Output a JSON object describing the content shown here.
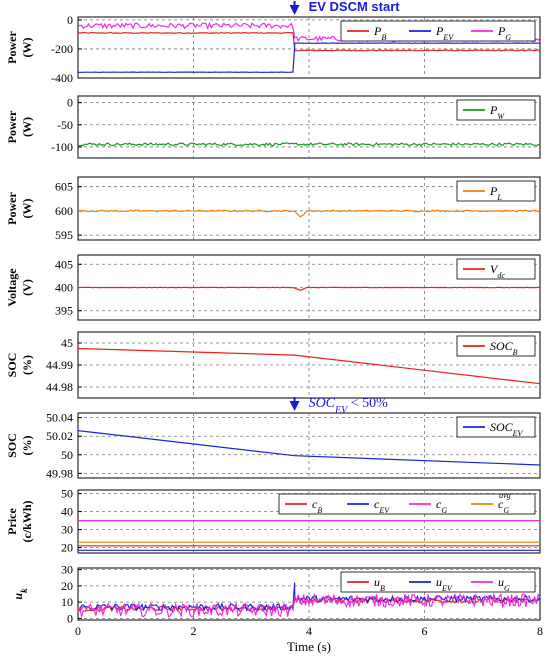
{
  "chart_data": {
    "type": "line",
    "x_axis": {
      "label": "Time (s)",
      "range": [
        0,
        8
      ],
      "ticks": [
        "0",
        "2",
        "4",
        "6",
        "8"
      ]
    },
    "event_time": 3.75,
    "annotations": [
      {
        "text": "EV DSCM start",
        "x": 3.75,
        "panel": 0
      },
      {
        "text": "SOC",
        "sub": "EV",
        "suffix": " < 50%",
        "x": 3.75,
        "panel": 5
      }
    ],
    "panels": [
      {
        "ylabel": [
          "Power",
          "(W)"
        ],
        "ylim": [
          -400,
          20
        ],
        "yticks": [
          0,
          -200,
          -400
        ],
        "series": [
          {
            "name": "P",
            "sub": "B",
            "color": "#e8221c",
            "before": -90,
            "after": -210,
            "noise": 3
          },
          {
            "name": "P",
            "sub": "EV",
            "color": "#1b24d6",
            "before": -360,
            "after": -160,
            "noise": 1
          },
          {
            "name": "P",
            "sub": "G",
            "color": "#f02ce0",
            "before": -40,
            "after": -130,
            "noise": 18
          }
        ]
      },
      {
        "ylabel": [
          "Power",
          "(W)"
        ],
        "ylim": [
          -125,
          15
        ],
        "yticks": [
          0,
          -50,
          -100
        ],
        "series": [
          {
            "name": "P",
            "sub": "W",
            "color": "#139a18",
            "before": -94,
            "after": -94,
            "noise": 3
          }
        ]
      },
      {
        "ylabel": [
          "Power",
          "(W)"
        ],
        "ylim": [
          594,
          607
        ],
        "yticks": [
          605,
          600,
          595
        ],
        "series": [
          {
            "name": "P",
            "sub": "L",
            "color": "#f07f10",
            "before": 600,
            "after": 600,
            "noise": 0.15,
            "dip": -1.2
          }
        ]
      },
      {
        "ylabel": [
          "Voltage",
          "(V)"
        ],
        "ylim": [
          393,
          407
        ],
        "yticks": [
          405,
          400,
          395
        ],
        "series": [
          {
            "name": "V",
            "sub": "dc",
            "color": "#e8221c",
            "before": 400,
            "after": 400,
            "noise": 0.05,
            "dip": -0.6
          }
        ]
      },
      {
        "ylabel": [
          "SOC",
          "(%)"
        ],
        "ylim": [
          44.975,
          45.005
        ],
        "yticks": [
          45,
          44.99,
          44.98
        ],
        "tick_labels": [
          "45",
          "44.99",
          "44.98"
        ],
        "series": [
          {
            "name": "SOC",
            "sub": "B",
            "color": "#e8221c",
            "points": [
              [
                0,
                44.9975
              ],
              [
                3.75,
                44.9945
              ],
              [
                8,
                44.9815
              ]
            ]
          }
        ]
      },
      {
        "ylabel": [
          "SOC",
          "(%)"
        ],
        "ylim": [
          49.975,
          50.045
        ],
        "yticks": [
          50.04,
          50.02,
          50.0,
          49.98
        ],
        "tick_labels": [
          "50.04",
          "50.02",
          "50",
          "49.98"
        ],
        "series": [
          {
            "name": "SOC",
            "sub": "EV",
            "color": "#1b24d6",
            "points": [
              [
                0,
                50.026
              ],
              [
                3.75,
                49.999
              ],
              [
                8,
                49.989
              ]
            ]
          }
        ]
      },
      {
        "ylabel": [
          "Price",
          "(c/kWh)"
        ],
        "ylim": [
          17,
          52
        ],
        "yticks": [
          50,
          40,
          30,
          20
        ],
        "series": [
          {
            "name": "c",
            "sub": "B",
            "color": "#e8221c",
            "before": 21,
            "after": 21,
            "noise": 0
          },
          {
            "name": "c",
            "sub": "EV",
            "color": "#1b24d6",
            "before": 18.5,
            "after": 18.5,
            "noise": 0
          },
          {
            "name": "c",
            "sub": "G",
            "color": "#f02ce0",
            "before": 35,
            "after": 35,
            "noise": 0
          },
          {
            "name": "c",
            "sub": "G",
            "sup": "avg",
            "color": "#f07f10",
            "before": 23,
            "after": 23,
            "noise": 0
          }
        ]
      },
      {
        "ylabel": [
          "u",
          "k"
        ],
        "ylim": [
          -1,
          31
        ],
        "yticks": [
          30,
          20,
          10,
          0
        ],
        "series": [
          {
            "name": "u",
            "sub": "B",
            "color": "#e8221c",
            "before": 6,
            "after": 11,
            "noise": 1.5
          },
          {
            "name": "u",
            "sub": "EV",
            "color": "#1b24d6",
            "before": 7,
            "after": 12,
            "noise": 2,
            "spike": 22
          },
          {
            "name": "u",
            "sub": "G",
            "color": "#f02ce0",
            "before": 5,
            "after": 11,
            "noise": 4
          }
        ]
      }
    ]
  }
}
